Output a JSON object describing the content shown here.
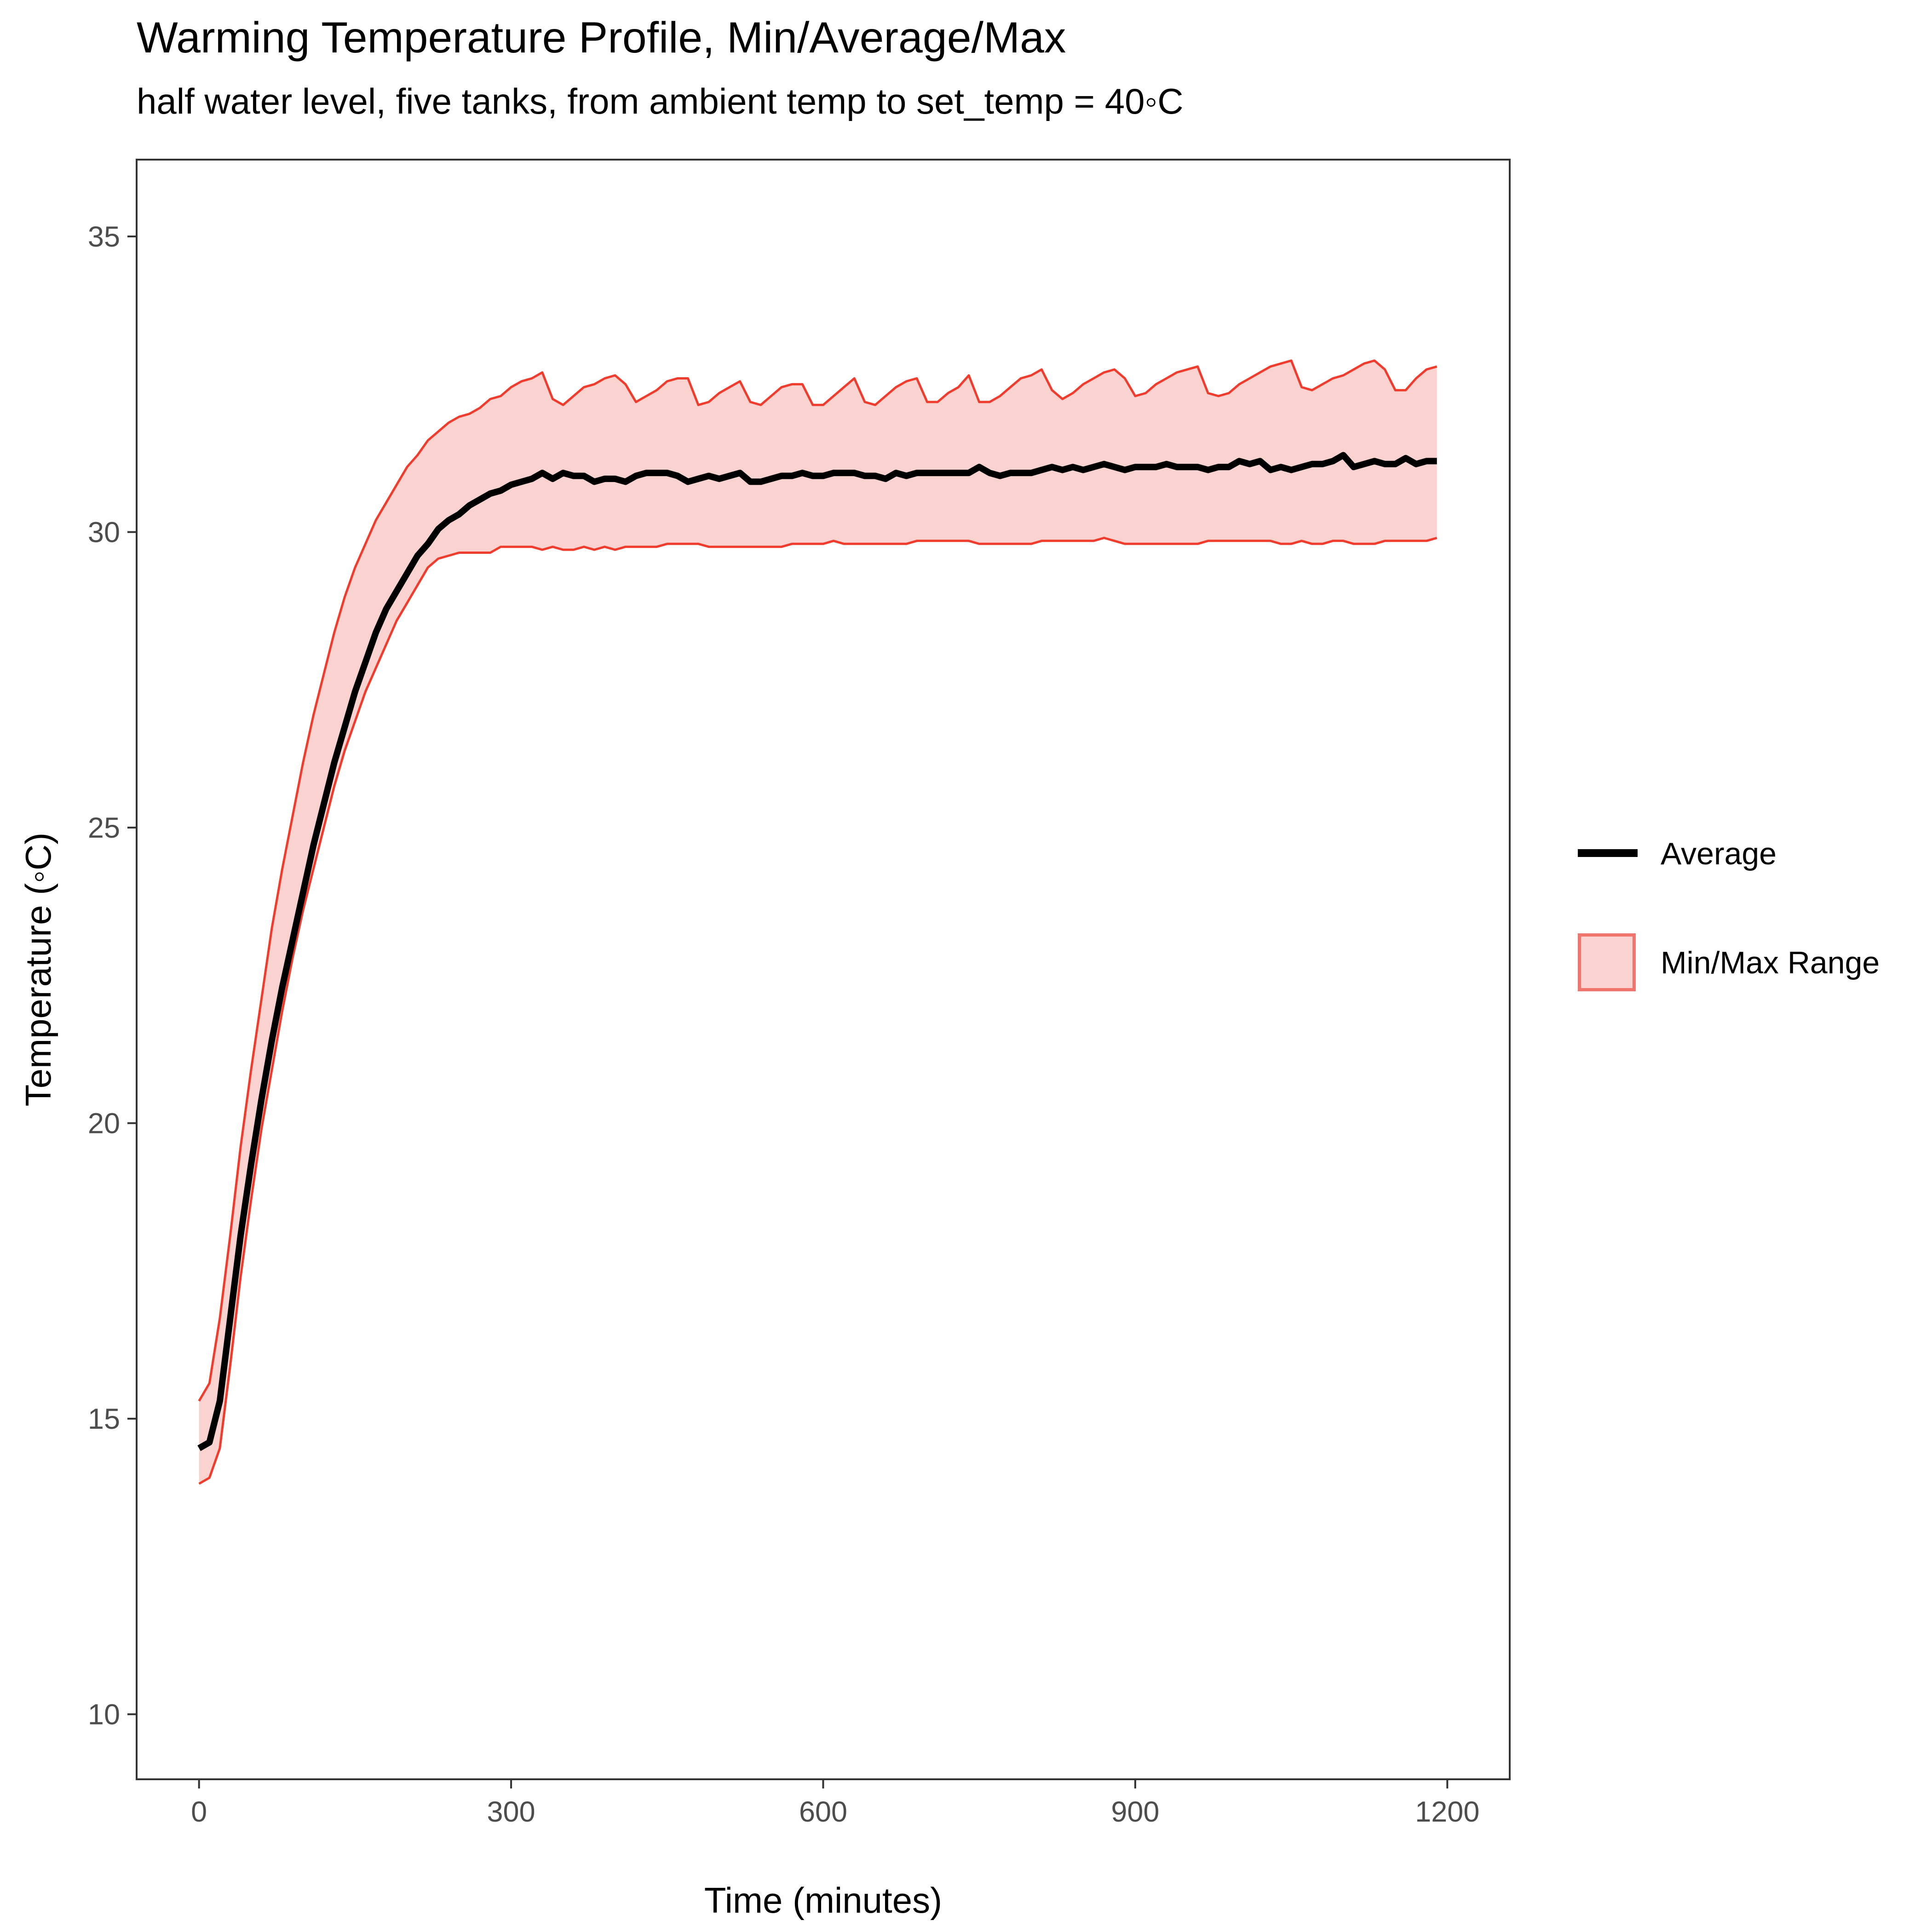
{
  "title": "Warming Temperature Profile, Min/Average/Max",
  "subtitle": "half water level, five tanks, from ambient temp to set_temp = 40◦C",
  "colors": {
    "average_line": "#000000",
    "range_fill": "#fad2cf",
    "range_border": "#f03c2d",
    "legend_box_border": "#f0756f",
    "axis": "#333333",
    "tick_text": "#4d4d4d"
  },
  "legend": {
    "position": "right",
    "items": [
      {
        "label": "Average",
        "icon": "line-key-icon"
      },
      {
        "label": "Min/Max Range",
        "icon": "filled-box-key-icon"
      }
    ]
  },
  "chart_data": {
    "type": "line",
    "title": "Warming Temperature Profile, Min/Average/Max",
    "subtitle": "half water level, five tanks, from ambient temp to set_temp = 40◦C",
    "xlabel": "Time (minutes)",
    "ylabel": "Temperature (◦C)",
    "xlim": [
      -60,
      1260
    ],
    "ylim": [
      8.9,
      36.3
    ],
    "xticks": [
      0,
      300,
      600,
      900,
      1200
    ],
    "xtick_labels": [
      "0",
      "300",
      "600",
      "900",
      "1200"
    ],
    "yticks": [
      10,
      15,
      20,
      25,
      30,
      35
    ],
    "ytick_labels": [
      "10",
      "15",
      "20",
      "25",
      "30",
      "35"
    ],
    "grid": false,
    "x": [
      0,
      10,
      20,
      30,
      40,
      50,
      60,
      70,
      80,
      90,
      100,
      110,
      120,
      130,
      140,
      150,
      160,
      170,
      180,
      190,
      200,
      210,
      220,
      230,
      240,
      250,
      260,
      270,
      280,
      290,
      300,
      310,
      320,
      330,
      340,
      350,
      360,
      370,
      380,
      390,
      400,
      410,
      420,
      430,
      440,
      450,
      460,
      470,
      480,
      490,
      500,
      510,
      520,
      530,
      540,
      550,
      560,
      570,
      580,
      590,
      600,
      610,
      620,
      630,
      640,
      650,
      660,
      670,
      680,
      690,
      700,
      710,
      720,
      730,
      740,
      750,
      760,
      770,
      780,
      790,
      800,
      810,
      820,
      830,
      840,
      850,
      860,
      870,
      880,
      890,
      900,
      910,
      920,
      930,
      940,
      950,
      960,
      970,
      980,
      990,
      1000,
      1010,
      1020,
      1030,
      1040,
      1050,
      1060,
      1070,
      1080,
      1090,
      1100,
      1110,
      1120,
      1130,
      1140,
      1150,
      1160,
      1170,
      1180,
      1190
    ],
    "series": [
      {
        "name": "Average",
        "type": "line",
        "values": [
          14.5,
          14.6,
          15.3,
          16.7,
          18.1,
          19.3,
          20.4,
          21.4,
          22.3,
          23.1,
          23.9,
          24.7,
          25.4,
          26.1,
          26.7,
          27.3,
          27.8,
          28.3,
          28.7,
          29.0,
          29.3,
          29.6,
          29.8,
          30.05,
          30.2,
          30.3,
          30.45,
          30.55,
          30.65,
          30.7,
          30.8,
          30.85,
          30.9,
          31.0,
          30.9,
          31.0,
          30.95,
          30.95,
          30.85,
          30.9,
          30.9,
          30.85,
          30.95,
          31.0,
          31.0,
          31.0,
          30.95,
          30.85,
          30.9,
          30.95,
          30.9,
          30.95,
          31.0,
          30.85,
          30.85,
          30.9,
          30.95,
          30.95,
          31.0,
          30.95,
          30.95,
          31.0,
          31.0,
          31.0,
          30.95,
          30.95,
          30.9,
          31.0,
          30.95,
          31.0,
          31.0,
          31.0,
          31.0,
          31.0,
          31.0,
          31.1,
          31.0,
          30.95,
          31.0,
          31.0,
          31.0,
          31.05,
          31.1,
          31.05,
          31.1,
          31.05,
          31.1,
          31.15,
          31.1,
          31.05,
          31.1,
          31.1,
          31.1,
          31.15,
          31.1,
          31.1,
          31.1,
          31.05,
          31.1,
          31.1,
          31.2,
          31.15,
          31.2,
          31.05,
          31.1,
          31.05,
          31.1,
          31.15,
          31.15,
          31.2,
          31.3,
          31.1,
          31.15,
          31.2,
          31.15,
          31.15,
          31.25,
          31.15,
          31.2,
          31.2
        ]
      },
      {
        "name": "Min/Max Range",
        "type": "area_range",
        "min": [
          13.9,
          14.0,
          14.5,
          15.9,
          17.4,
          18.7,
          19.9,
          20.9,
          21.9,
          22.8,
          23.6,
          24.3,
          25.0,
          25.7,
          26.3,
          26.8,
          27.3,
          27.7,
          28.1,
          28.5,
          28.8,
          29.1,
          29.4,
          29.55,
          29.6,
          29.65,
          29.65,
          29.65,
          29.65,
          29.75,
          29.75,
          29.75,
          29.75,
          29.7,
          29.75,
          29.7,
          29.7,
          29.75,
          29.7,
          29.75,
          29.7,
          29.75,
          29.75,
          29.75,
          29.75,
          29.8,
          29.8,
          29.8,
          29.8,
          29.75,
          29.75,
          29.75,
          29.75,
          29.75,
          29.75,
          29.75,
          29.75,
          29.8,
          29.8,
          29.8,
          29.8,
          29.85,
          29.8,
          29.8,
          29.8,
          29.8,
          29.8,
          29.8,
          29.8,
          29.85,
          29.85,
          29.85,
          29.85,
          29.85,
          29.85,
          29.8,
          29.8,
          29.8,
          29.8,
          29.8,
          29.8,
          29.85,
          29.85,
          29.85,
          29.85,
          29.85,
          29.85,
          29.9,
          29.85,
          29.8,
          29.8,
          29.8,
          29.8,
          29.8,
          29.8,
          29.8,
          29.8,
          29.85,
          29.85,
          29.85,
          29.85,
          29.85,
          29.85,
          29.85,
          29.8,
          29.8,
          29.85,
          29.8,
          29.8,
          29.85,
          29.85,
          29.8,
          29.8,
          29.8,
          29.85,
          29.85,
          29.85,
          29.85,
          29.85,
          29.9
        ],
        "max": [
          15.3,
          15.6,
          16.7,
          18.1,
          19.6,
          20.9,
          22.1,
          23.3,
          24.3,
          25.2,
          26.1,
          26.9,
          27.6,
          28.3,
          28.9,
          29.4,
          29.8,
          30.2,
          30.5,
          30.8,
          31.1,
          31.3,
          31.55,
          31.7,
          31.85,
          31.95,
          32.0,
          32.1,
          32.25,
          32.3,
          32.45,
          32.55,
          32.6,
          32.7,
          32.25,
          32.15,
          32.3,
          32.45,
          32.5,
          32.6,
          32.65,
          32.5,
          32.2,
          32.3,
          32.4,
          32.55,
          32.6,
          32.6,
          32.15,
          32.2,
          32.35,
          32.45,
          32.55,
          32.2,
          32.15,
          32.3,
          32.45,
          32.5,
          32.5,
          32.15,
          32.15,
          32.3,
          32.45,
          32.6,
          32.2,
          32.15,
          32.3,
          32.45,
          32.55,
          32.6,
          32.2,
          32.2,
          32.35,
          32.45,
          32.65,
          32.2,
          32.2,
          32.3,
          32.45,
          32.6,
          32.65,
          32.75,
          32.4,
          32.25,
          32.35,
          32.5,
          32.6,
          32.7,
          32.75,
          32.6,
          32.3,
          32.35,
          32.5,
          32.6,
          32.7,
          32.75,
          32.8,
          32.35,
          32.3,
          32.35,
          32.5,
          32.6,
          32.7,
          32.8,
          32.85,
          32.9,
          32.45,
          32.4,
          32.5,
          32.6,
          32.65,
          32.75,
          32.85,
          32.9,
          32.75,
          32.4,
          32.4,
          32.6,
          32.75,
          32.8
        ]
      }
    ]
  }
}
